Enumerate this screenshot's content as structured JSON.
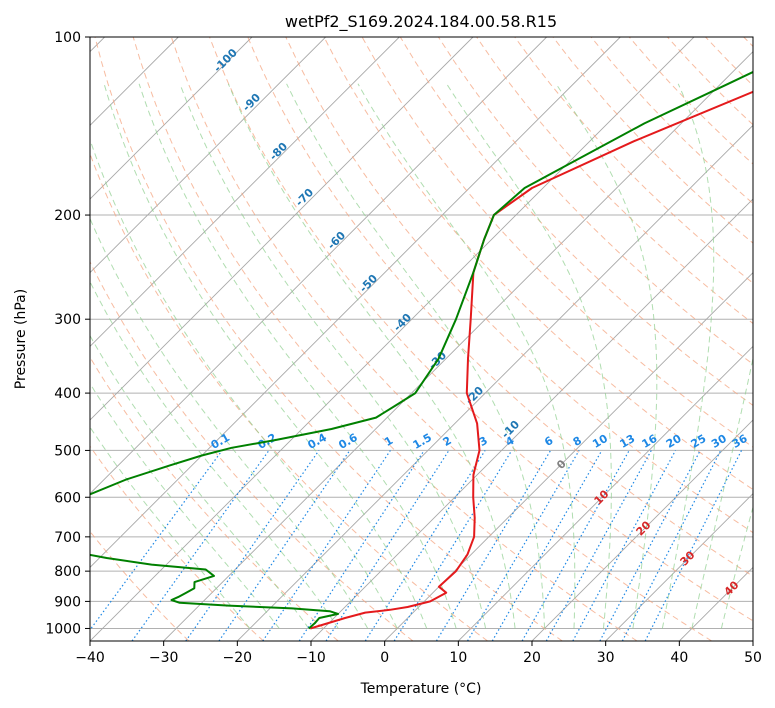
{
  "chart_data": {
    "type": "line",
    "title": "wetPf2_S169.2024.184.00.58.R15",
    "xlabel": "Temperature (°C)",
    "ylabel": "Pressure (hPa)",
    "xlim": [
      -40,
      50
    ],
    "ylim": [
      1050,
      100
    ],
    "y_scale": "log",
    "grid": true,
    "x_ticks": [
      -40,
      -30,
      -20,
      -10,
      0,
      10,
      20,
      30,
      40,
      50
    ],
    "x_tick_labels": [
      "−40",
      "−30",
      "−20",
      "−10",
      "0",
      "10",
      "20",
      "30",
      "40",
      "50"
    ],
    "y_ticks": [
      100,
      200,
      300,
      400,
      500,
      600,
      700,
      800,
      900,
      1000
    ],
    "y_tick_labels": [
      "100",
      "200",
      "300",
      "400",
      "500",
      "600",
      "700",
      "800",
      "900",
      "1000"
    ],
    "colors": {
      "temperature": "#e41a1c",
      "dewpoint": "#008000",
      "isotherm": "#999999",
      "dry_adiabat": "#f4a582",
      "moist_adiabat": "#8fcf8f",
      "mixing_ratio": "#1e88e5",
      "label_blue": "#1f77b4",
      "label_red": "#d62728"
    },
    "series": [
      {
        "key": "temperature",
        "p": [
          1000,
          960,
          940,
          930,
          920,
          900,
          870,
          850,
          800,
          750,
          700,
          650,
          600,
          550,
          500,
          450,
          400,
          350,
          300,
          250,
          220,
          200,
          180,
          150,
          120,
          100
        ],
        "temp": [
          -11.8,
          -8.5,
          -6.5,
          -3.5,
          -1.5,
          0.8,
          1.8,
          0.0,
          0.2,
          -0.5,
          -2.0,
          -4.5,
          -7.5,
          -10.5,
          -13.0,
          -17.0,
          -22.5,
          -27.0,
          -32.0,
          -38.0,
          -41.0,
          -43.0,
          -41.5,
          -34.0,
          -23.0,
          -14.0
        ]
      },
      {
        "key": "dewpoint",
        "p": [
          1000,
          980,
          960,
          945,
          935,
          925,
          915,
          905,
          895,
          885,
          870,
          855,
          835,
          815,
          795,
          780,
          760,
          740,
          720,
          700,
          680,
          655,
          620,
          600,
          560,
          530,
          510,
          495,
          480,
          460,
          440,
          420,
          400,
          350,
          300,
          250,
          220,
          200,
          180,
          160,
          140,
          120,
          100
        ],
        "temp": [
          -12.0,
          -11.9,
          -12.0,
          -10.0,
          -11.5,
          -17.0,
          -26.0,
          -33.0,
          -34.5,
          -34.0,
          -33.5,
          -33.0,
          -33.8,
          -32.0,
          -34.0,
          -42.0,
          -49.0,
          -55.0,
          -60.0,
          -62.0,
          -63.0,
          -60.0,
          -58.5,
          -60.5,
          -57.0,
          -53.0,
          -50.0,
          -47.0,
          -42.0,
          -36.0,
          -31.5,
          -30.5,
          -29.5,
          -31.0,
          -34.0,
          -38.0,
          -41.0,
          -43.0,
          -42.5,
          -39.0,
          -35.0,
          -29.0,
          -22.0
        ]
      }
    ],
    "mixing_ratio_labels": [
      "0.1",
      "0.2",
      "0.4",
      "0.6",
      "1",
      "1.5",
      "2",
      "3",
      "4",
      "6",
      "8",
      "10",
      "13",
      "16",
      "20",
      "25",
      "30",
      "36"
    ],
    "mixing_ratio_values": [
      0.1,
      0.2,
      0.4,
      0.6,
      1,
      1.5,
      2,
      3,
      4,
      6,
      8,
      10,
      13,
      16,
      20,
      25,
      30,
      36
    ],
    "isotherm_labels": [
      "-100",
      "-90",
      "-80",
      "-70",
      "-60",
      "-50",
      "-40",
      "-30",
      "-20",
      "-10"
    ],
    "moist_adiabat_labels": [
      "0",
      "10",
      "20",
      "30",
      "40"
    ]
  }
}
